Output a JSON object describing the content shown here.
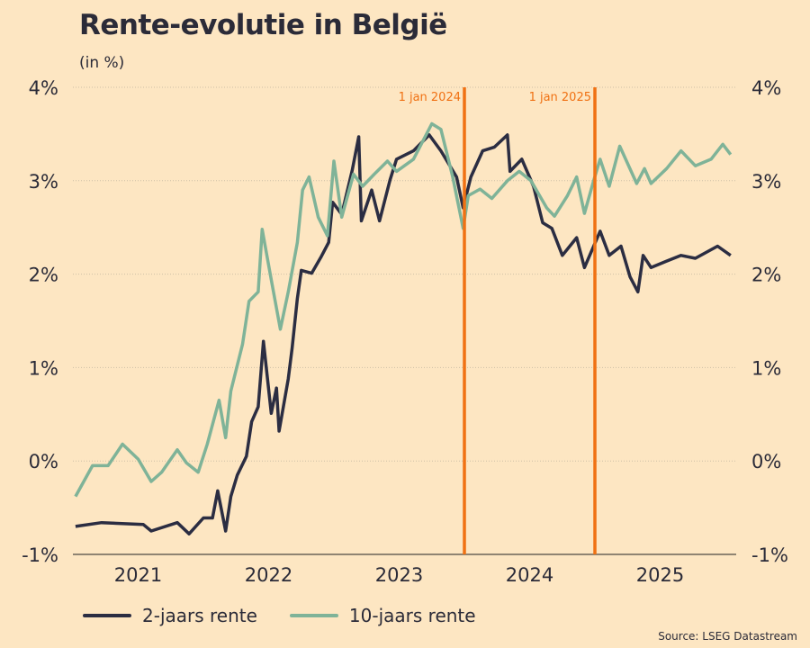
{
  "chart_data": {
    "type": "line",
    "title": "Rente-evolutie in België",
    "subtitle": "(in %)",
    "xlim": [
      2021,
      2026.08
    ],
    "ylim": [
      -1,
      4
    ],
    "y_ticks": [
      4,
      3,
      2,
      1,
      0,
      -1
    ],
    "y_tick_labels": [
      "4%",
      "3%",
      "2%",
      "1%",
      "0%",
      "-1%"
    ],
    "x_tick_labels": [
      {
        "label": "2021",
        "at": 2021.5
      },
      {
        "label": "2022",
        "at": 2022.5
      },
      {
        "label": "2023",
        "at": 2023.5
      },
      {
        "label": "2024",
        "at": 2024.5
      },
      {
        "label": "2025",
        "at": 2025.5
      }
    ],
    "grid": true,
    "annotations": [
      {
        "label": "1 jan 2024",
        "x": 2024.0
      },
      {
        "label": "1 jan 2025",
        "x": 2025.0
      }
    ],
    "series": [
      {
        "name": "2-jaars rente",
        "color": "#2b2d42",
        "points": [
          [
            2021.02,
            -0.7
          ],
          [
            2021.22,
            -0.66
          ],
          [
            2021.54,
            -0.68
          ],
          [
            2021.6,
            -0.75
          ],
          [
            2021.8,
            -0.66
          ],
          [
            2021.89,
            -0.78
          ],
          [
            2022.0,
            -0.61
          ],
          [
            2022.07,
            -0.61
          ],
          [
            2022.11,
            -0.32
          ],
          [
            2022.17,
            -0.75
          ],
          [
            2022.21,
            -0.38
          ],
          [
            2022.26,
            -0.15
          ],
          [
            2022.33,
            0.05
          ],
          [
            2022.37,
            0.42
          ],
          [
            2022.42,
            0.58
          ],
          [
            2022.46,
            1.28
          ],
          [
            2022.52,
            0.51
          ],
          [
            2022.56,
            0.78
          ],
          [
            2022.58,
            0.32
          ],
          [
            2022.65,
            0.88
          ],
          [
            2022.68,
            1.21
          ],
          [
            2022.72,
            1.74
          ],
          [
            2022.75,
            2.04
          ],
          [
            2022.83,
            2.01
          ],
          [
            2022.9,
            2.18
          ],
          [
            2022.96,
            2.34
          ],
          [
            2022.99,
            2.77
          ],
          [
            2023.06,
            2.64
          ],
          [
            2023.14,
            3.11
          ],
          [
            2023.19,
            3.47
          ],
          [
            2023.21,
            2.57
          ],
          [
            2023.29,
            2.9
          ],
          [
            2023.35,
            2.57
          ],
          [
            2023.43,
            3.01
          ],
          [
            2023.48,
            3.23
          ],
          [
            2023.61,
            3.32
          ],
          [
            2023.73,
            3.49
          ],
          [
            2023.82,
            3.32
          ],
          [
            2023.94,
            3.04
          ],
          [
            2023.99,
            2.71
          ],
          [
            2024.05,
            3.04
          ],
          [
            2024.14,
            3.32
          ],
          [
            2024.23,
            3.36
          ],
          [
            2024.33,
            3.49
          ],
          [
            2024.35,
            3.1
          ],
          [
            2024.44,
            3.23
          ],
          [
            2024.53,
            2.94
          ],
          [
            2024.6,
            2.55
          ],
          [
            2024.67,
            2.49
          ],
          [
            2024.75,
            2.2
          ],
          [
            2024.86,
            2.39
          ],
          [
            2024.92,
            2.07
          ],
          [
            2025.04,
            2.46
          ],
          [
            2025.11,
            2.2
          ],
          [
            2025.2,
            2.3
          ],
          [
            2025.27,
            1.97
          ],
          [
            2025.33,
            1.81
          ],
          [
            2025.37,
            2.2
          ],
          [
            2025.43,
            2.07
          ],
          [
            2025.55,
            2.14
          ],
          [
            2025.66,
            2.2
          ],
          [
            2025.77,
            2.17
          ],
          [
            2025.94,
            2.3
          ],
          [
            2026.04,
            2.2
          ]
        ]
      },
      {
        "name": "10-jaars rente",
        "color": "#7fb398",
        "points": [
          [
            2021.02,
            -0.38
          ],
          [
            2021.15,
            -0.05
          ],
          [
            2021.27,
            -0.05
          ],
          [
            2021.38,
            0.18
          ],
          [
            2021.5,
            0.02
          ],
          [
            2021.6,
            -0.22
          ],
          [
            2021.68,
            -0.12
          ],
          [
            2021.8,
            0.12
          ],
          [
            2021.87,
            -0.02
          ],
          [
            2021.96,
            -0.12
          ],
          [
            2022.03,
            0.18
          ],
          [
            2022.12,
            0.65
          ],
          [
            2022.17,
            0.25
          ],
          [
            2022.21,
            0.75
          ],
          [
            2022.3,
            1.25
          ],
          [
            2022.35,
            1.71
          ],
          [
            2022.42,
            1.81
          ],
          [
            2022.45,
            2.48
          ],
          [
            2022.52,
            1.94
          ],
          [
            2022.59,
            1.41
          ],
          [
            2022.65,
            1.81
          ],
          [
            2022.72,
            2.34
          ],
          [
            2022.76,
            2.9
          ],
          [
            2022.81,
            3.04
          ],
          [
            2022.88,
            2.61
          ],
          [
            2022.95,
            2.41
          ],
          [
            2023.0,
            3.21
          ],
          [
            2023.06,
            2.61
          ],
          [
            2023.15,
            3.07
          ],
          [
            2023.22,
            2.94
          ],
          [
            2023.31,
            3.07
          ],
          [
            2023.41,
            3.21
          ],
          [
            2023.48,
            3.1
          ],
          [
            2023.61,
            3.23
          ],
          [
            2023.75,
            3.61
          ],
          [
            2023.82,
            3.55
          ],
          [
            2023.91,
            3.04
          ],
          [
            2023.99,
            2.49
          ],
          [
            2024.03,
            2.84
          ],
          [
            2024.12,
            2.91
          ],
          [
            2024.21,
            2.81
          ],
          [
            2024.33,
            3.0
          ],
          [
            2024.42,
            3.1
          ],
          [
            2024.51,
            3.0
          ],
          [
            2024.63,
            2.71
          ],
          [
            2024.69,
            2.62
          ],
          [
            2024.79,
            2.84
          ],
          [
            2024.86,
            3.04
          ],
          [
            2024.92,
            2.65
          ],
          [
            2024.99,
            3.0
          ],
          [
            2025.04,
            3.23
          ],
          [
            2025.11,
            2.94
          ],
          [
            2025.19,
            3.37
          ],
          [
            2025.32,
            2.97
          ],
          [
            2025.38,
            3.13
          ],
          [
            2025.43,
            2.97
          ],
          [
            2025.55,
            3.13
          ],
          [
            2025.66,
            3.32
          ],
          [
            2025.77,
            3.16
          ],
          [
            2025.89,
            3.23
          ],
          [
            2025.98,
            3.39
          ],
          [
            2026.04,
            3.28
          ]
        ]
      }
    ],
    "legend_position": "bottom-left",
    "source": "Source: LSEG Datastream"
  },
  "colors": {
    "annotation": "#f07113",
    "grid": "#cdbfa6",
    "axis": "#6b6358",
    "text": "#2b2b38"
  }
}
